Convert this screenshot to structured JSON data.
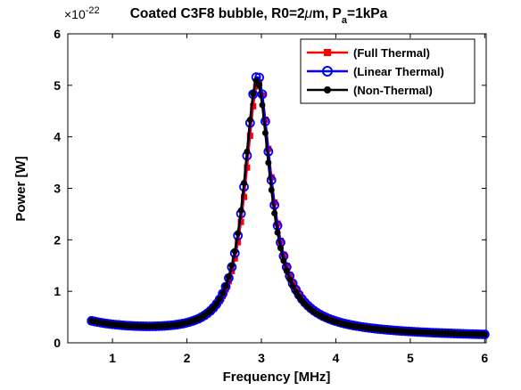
{
  "chart_data": {
    "type": "line",
    "title": {
      "main": "Coated C3F8 bubble, R0=2",
      "mu": "μ",
      "unit": "m, P",
      "sub": "a",
      "tail": "=1kPa"
    },
    "xlabel": "Frequency [MHz]",
    "ylabel": "Power [W]",
    "y_exponent": {
      "base": "×10",
      "power": "-22"
    },
    "xlim": [
      0.4,
      6.02
    ],
    "ylim": [
      0,
      6
    ],
    "xticks": [
      1,
      2,
      3,
      4,
      5,
      6
    ],
    "yticks": [
      0,
      1,
      2,
      3,
      4,
      5,
      6
    ],
    "x_tick_labels": [
      "1",
      "2",
      "3",
      "4",
      "5",
      "6"
    ],
    "y_tick_labels": [
      "0",
      "1",
      "2",
      "3",
      "4",
      "5",
      "6"
    ],
    "grid": false,
    "legend_position": "top-right",
    "resonance": {
      "f0": 2.95,
      "q": 6.8,
      "baseline": 0.2
    },
    "x_range": [
      0.72,
      6.0
    ],
    "n_points": 130,
    "series": [
      {
        "name": "(Full Thermal)",
        "color": "#ff0000",
        "marker": "square",
        "peak": 5.07,
        "f0": 2.96
      },
      {
        "name": "(Linear Thermal)",
        "color": "#0000ff",
        "marker": "circle",
        "peak": 5.2,
        "f0": 2.95
      },
      {
        "name": "(Non-Thermal)",
        "color": "#000000",
        "marker": "dot",
        "peak": 5.1,
        "f0": 2.94
      }
    ]
  }
}
